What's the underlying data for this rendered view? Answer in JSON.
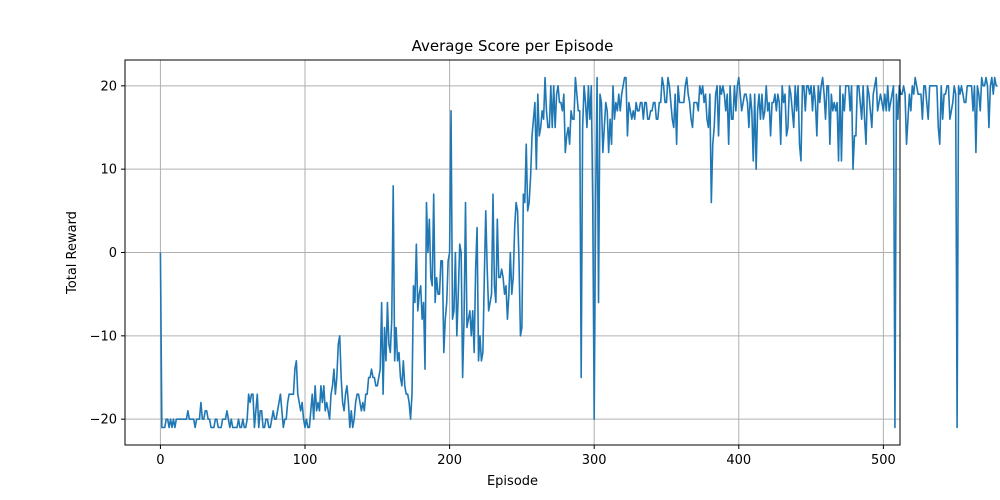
{
  "chart_data": {
    "type": "line",
    "title": "Average Score per Episode",
    "xlabel": "Episode",
    "ylabel": "Total Reward",
    "xlim": [
      -24.5,
      511.5
    ],
    "ylim": [
      -23.1,
      23.1
    ],
    "xticks": [
      0,
      100,
      200,
      300,
      400,
      500
    ],
    "yticks": [
      -20,
      -10,
      0,
      10,
      20
    ],
    "xtick_labels": [
      "0",
      "100",
      "200",
      "300",
      "400",
      "500"
    ],
    "ytick_labels": [
      "−20",
      "−10",
      "0",
      "10",
      "20"
    ],
    "grid": true,
    "legend": "none",
    "colors": {
      "line": "#1f77b4",
      "grid": "#b0b0b0",
      "axes": "#000000"
    },
    "series": [
      {
        "values": [
          0,
          -21,
          -21,
          -21,
          -20,
          -20,
          -21,
          -20,
          -21,
          -20,
          -21,
          -20,
          -20,
          -20,
          -20,
          -20,
          -20,
          -20,
          -20,
          -19,
          -20,
          -20,
          -20,
          -20,
          -21,
          -20,
          -20,
          -20,
          -18,
          -20,
          -20,
          -19,
          -19,
          -20,
          -20,
          -21,
          -21,
          -21,
          -20,
          -20,
          -21,
          -21,
          -21,
          -20,
          -20,
          -20,
          -19,
          -20,
          -21,
          -20,
          -21,
          -21,
          -21,
          -21,
          -20,
          -21,
          -21,
          -20,
          -21,
          -21,
          -20,
          -17,
          -18,
          -17,
          -17,
          -21,
          -19,
          -17,
          -21,
          -19,
          -19,
          -21,
          -21,
          -20,
          -20,
          -21,
          -21,
          -20,
          -19,
          -20,
          -20,
          -19,
          -18,
          -17,
          -19,
          -21,
          -20,
          -20,
          -18,
          -17,
          -17,
          -17,
          -17,
          -14,
          -13,
          -17,
          -18,
          -19,
          -18,
          -20,
          -21,
          -20,
          -21,
          -21,
          -19,
          -17,
          -20,
          -16,
          -19,
          -18,
          -19,
          -16,
          -18,
          -16,
          -19,
          -18,
          -19,
          -20,
          -17,
          -16,
          -14,
          -17,
          -15,
          -11,
          -10,
          -15,
          -18,
          -19,
          -17,
          -16,
          -18,
          -21,
          -19,
          -21,
          -20,
          -18,
          -17,
          -17,
          -18,
          -19,
          -18,
          -19,
          -17,
          -17,
          -15,
          -15,
          -14,
          -15,
          -15,
          -16,
          -16,
          -15,
          -14,
          -6,
          -17,
          -9,
          -13,
          -6,
          -11,
          -12,
          -8,
          8,
          -13,
          -9,
          -13,
          -12,
          -15,
          -16,
          -13,
          -16,
          -17,
          -17,
          -18,
          -20,
          -17,
          -4,
          -6,
          1,
          -7,
          -5,
          -4,
          -8,
          -6,
          -14,
          6,
          0,
          4,
          -3,
          -4,
          7,
          -6,
          -3,
          -5,
          -5,
          -1,
          -1,
          -12,
          -8,
          -6,
          -1,
          0,
          17,
          -8,
          -7,
          0,
          -10,
          -5,
          1,
          0,
          -15,
          -8,
          6,
          -9,
          -8,
          -7,
          -10,
          -7,
          -12,
          -2,
          3,
          -13,
          -10,
          -13,
          -12,
          -3,
          5,
          -2,
          -7,
          -6,
          -5,
          7,
          -4,
          -6,
          4,
          -3,
          -3,
          -2,
          -3,
          -5,
          -4,
          -8,
          -5,
          0,
          -5,
          -3,
          3,
          6,
          5,
          -1,
          -10,
          -9,
          7,
          6,
          13,
          5,
          6,
          9,
          14,
          16,
          18,
          10,
          19,
          14,
          15,
          17,
          16,
          21,
          17,
          15,
          15,
          20,
          15,
          20,
          15,
          19,
          20,
          18,
          18,
          17,
          19,
          12,
          14,
          15,
          13,
          17,
          16,
          16,
          21,
          19,
          17,
          17,
          -15,
          15,
          20,
          18,
          15,
          20,
          16,
          20,
          6,
          -20,
          6,
          21,
          -6,
          19,
          18,
          12,
          15,
          18,
          17,
          12,
          16,
          13,
          20,
          16,
          18,
          17,
          19,
          17,
          19,
          20,
          21,
          21,
          14,
          18,
          17,
          16,
          17,
          16,
          18,
          17,
          17,
          18,
          18,
          16,
          18,
          18,
          16,
          16,
          17,
          17,
          18,
          18,
          16,
          16,
          18,
          18,
          21,
          20,
          18,
          18,
          21,
          20,
          18,
          16,
          15,
          19,
          13,
          20,
          18,
          18,
          18,
          18,
          20,
          21,
          19,
          18,
          16,
          15,
          18,
          18,
          18,
          17,
          20,
          19,
          20,
          18,
          19,
          16,
          15,
          19,
          6,
          13,
          15,
          19,
          20,
          14,
          20,
          19,
          20,
          19,
          17,
          19,
          13,
          20,
          16,
          16,
          20,
          17,
          20,
          21,
          19,
          17,
          18,
          19,
          19,
          18,
          15,
          19,
          17,
          11,
          19,
          10,
          17,
          19,
          16,
          19,
          16,
          17,
          20,
          17,
          18,
          14,
          18,
          18,
          19,
          17,
          19,
          18,
          13,
          20,
          18,
          19,
          14,
          15,
          20,
          19,
          17,
          15,
          20,
          17,
          20,
          13,
          11,
          20,
          20,
          17,
          20,
          20,
          19,
          20,
          17,
          20,
          18,
          14,
          20,
          18,
          20,
          21,
          19,
          16,
          20,
          20,
          13,
          19,
          17,
          18,
          17,
          18,
          11,
          20,
          11,
          19,
          17,
          20,
          20,
          20,
          17,
          20,
          10,
          14,
          14,
          20,
          20,
          18,
          16,
          20,
          16,
          13,
          20,
          19,
          17,
          15,
          19,
          20,
          21,
          17,
          18,
          19,
          18,
          17,
          19,
          17,
          20,
          17,
          18,
          19,
          20,
          -21,
          19,
          16,
          20,
          19,
          19,
          20,
          19,
          13,
          16,
          19,
          17,
          20,
          19,
          21,
          20,
          19,
          19,
          19,
          16,
          20,
          20,
          18,
          16,
          20,
          20,
          20,
          20,
          20,
          20,
          15,
          13,
          20,
          16,
          19,
          19,
          20,
          20,
          16,
          17,
          18,
          20,
          19,
          -21,
          20,
          19,
          20,
          19,
          18,
          18,
          20,
          20,
          20,
          20,
          17,
          20,
          12,
          20,
          19,
          17,
          21,
          20,
          20,
          21,
          20,
          15,
          20,
          21,
          19,
          21,
          20,
          20
        ]
      }
    ]
  }
}
